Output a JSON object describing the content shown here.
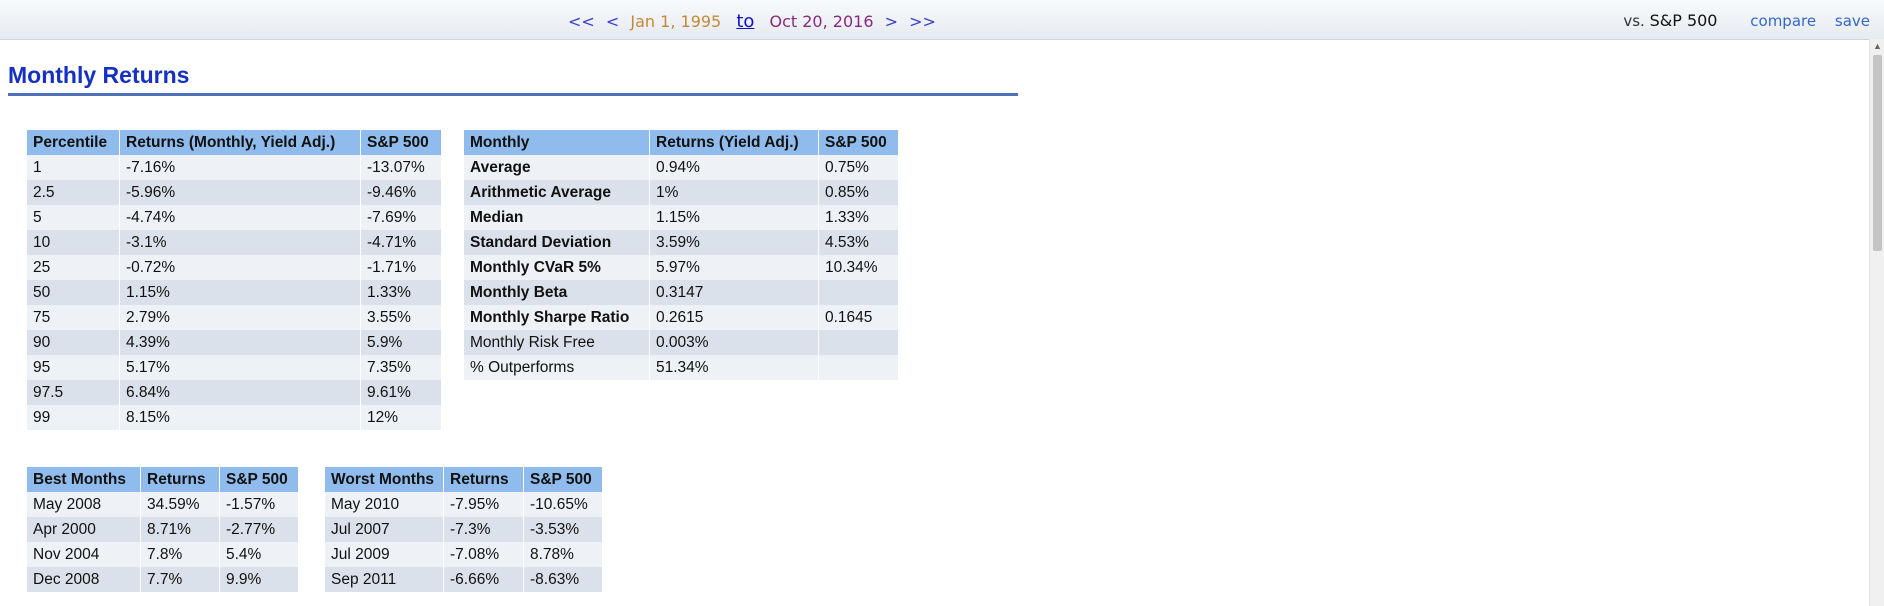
{
  "nav": {
    "first_label": "<<",
    "prev_label": "<",
    "start_date": "Jan 1, 1995",
    "to_label": "to",
    "end_date": "Oct 20, 2016",
    "next_label": ">",
    "last_label": ">>",
    "vs_prefix": "vs.",
    "benchmark": "S&P 500",
    "compare_label": "compare",
    "save_label": "save"
  },
  "section_title": "Monthly Returns",
  "percentile_table": {
    "headers": [
      "Percentile",
      "Returns (Monthly, Yield Adj.)",
      "S&P 500"
    ],
    "rows": [
      [
        "1",
        "-7.16%",
        "-13.07%"
      ],
      [
        "2.5",
        "-5.96%",
        "-9.46%"
      ],
      [
        "5",
        "-4.74%",
        "-7.69%"
      ],
      [
        "10",
        "-3.1%",
        "-4.71%"
      ],
      [
        "25",
        "-0.72%",
        "-1.71%"
      ],
      [
        "50",
        "1.15%",
        "1.33%"
      ],
      [
        "75",
        "2.79%",
        "3.55%"
      ],
      [
        "90",
        "4.39%",
        "5.9%"
      ],
      [
        "95",
        "5.17%",
        "7.35%"
      ],
      [
        "97.5",
        "6.84%",
        "9.61%"
      ],
      [
        "99",
        "8.15%",
        "12%"
      ]
    ]
  },
  "stats_table": {
    "headers": [
      "Monthly",
      "Returns (Yield Adj.)",
      "S&P 500"
    ],
    "rows": [
      [
        "Average",
        "0.94%",
        "0.75%"
      ],
      [
        "Arithmetic Average",
        "1%",
        "0.85%"
      ],
      [
        "Median",
        "1.15%",
        "1.33%"
      ],
      [
        "Standard Deviation",
        "3.59%",
        "4.53%"
      ],
      [
        "Monthly CVaR 5%",
        "5.97%",
        "10.34%"
      ],
      [
        "Monthly Beta",
        "0.3147",
        ""
      ],
      [
        "Monthly Sharpe Ratio",
        "0.2615",
        "0.1645"
      ],
      [
        "Monthly Risk Free",
        "0.003%",
        ""
      ],
      [
        "% Outperforms",
        "51.34%",
        ""
      ]
    ]
  },
  "best_table": {
    "headers": [
      "Best Months",
      "Returns",
      "S&P 500"
    ],
    "rows": [
      [
        "May 2008",
        "34.59%",
        "-1.57%"
      ],
      [
        "Apr 2000",
        "8.71%",
        "-2.77%"
      ],
      [
        "Nov 2004",
        "7.8%",
        "5.4%"
      ],
      [
        "Dec 2008",
        "7.7%",
        "9.9%"
      ]
    ]
  },
  "worst_table": {
    "headers": [
      "Worst Months",
      "Returns",
      "S&P 500"
    ],
    "rows": [
      [
        "May 2010",
        "-7.95%",
        "-10.65%"
      ],
      [
        "Jul 2007",
        "-7.3%",
        "-3.53%"
      ],
      [
        "Jul 2009",
        "-7.08%",
        "8.78%"
      ],
      [
        "Sep 2011",
        "-6.66%",
        "-8.63%"
      ]
    ]
  }
}
